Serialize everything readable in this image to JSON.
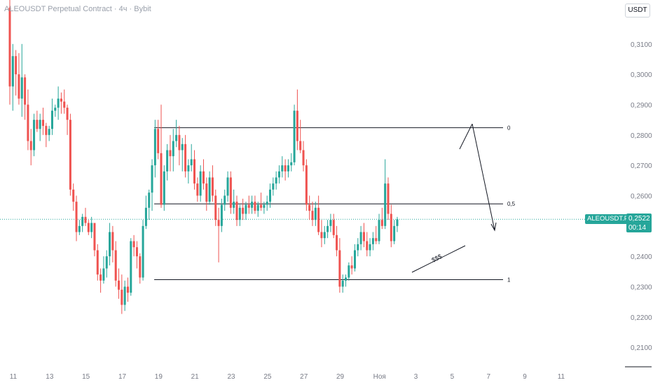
{
  "header": {
    "title": "ALEOUSDT Perpetual Contract · 4ч · Bybit",
    "currency": "USDT"
  },
  "price_tag": {
    "symbol": "ALEOUSDT.P",
    "price": "0,2522",
    "countdown": "00:14"
  },
  "colors": {
    "up": "#26a69a",
    "down": "#ef5350",
    "level_line": "#131722",
    "current_price_line": "#26a69a"
  },
  "chart_data": {
    "type": "candlestick",
    "y_axis": {
      "ticks": [
        "0,3100",
        "0,3000",
        "0,2900",
        "0,2800",
        "0,2700",
        "0,2600",
        "0,2400",
        "0,2300",
        "0,2200",
        "0,2100"
      ],
      "tick_values": [
        0.31,
        0.3,
        0.29,
        0.28,
        0.27,
        0.26,
        0.24,
        0.23,
        0.22,
        0.21
      ],
      "ylim": [
        0.2045,
        0.3245
      ]
    },
    "x_axis": {
      "ticks": [
        "11",
        "13",
        "15",
        "17",
        "19",
        "21",
        "23",
        "25",
        "27",
        "29",
        "Ноя",
        "3",
        "5",
        "7",
        "9",
        "11"
      ],
      "tick_bar_index": [
        0,
        12,
        24,
        36,
        48,
        60,
        72,
        84,
        96,
        108,
        121,
        133,
        145,
        157,
        169,
        181
      ]
    },
    "current_price": 0.2522,
    "levels": [
      {
        "label": "0",
        "value": 0.2824,
        "from_bar": 44,
        "to_bar": 165
      },
      {
        "label": "0,5",
        "value": 0.2573,
        "from_bar": 44,
        "to_bar": 165
      },
      {
        "label": "1",
        "value": 0.2323,
        "from_bar": 44,
        "to_bar": 165
      }
    ],
    "annotations": [
      {
        "text": "$$$",
        "type": "trendline_label"
      }
    ],
    "candles": [
      [
        0.322,
        0.3245,
        0.29,
        0.296
      ],
      [
        0.296,
        0.31,
        0.288,
        0.306
      ],
      [
        0.306,
        0.308,
        0.293,
        0.3
      ],
      [
        0.3,
        0.307,
        0.29,
        0.292
      ],
      [
        0.292,
        0.31,
        0.286,
        0.299
      ],
      [
        0.299,
        0.3,
        0.285,
        0.29
      ],
      [
        0.29,
        0.295,
        0.275,
        0.278
      ],
      [
        0.278,
        0.282,
        0.27,
        0.275
      ],
      [
        0.275,
        0.287,
        0.273,
        0.285
      ],
      [
        0.285,
        0.288,
        0.281,
        0.282
      ],
      [
        0.282,
        0.287,
        0.278,
        0.285
      ],
      [
        0.285,
        0.289,
        0.28,
        0.283
      ],
      [
        0.283,
        0.284,
        0.276,
        0.28
      ],
      [
        0.28,
        0.283,
        0.278,
        0.282
      ],
      [
        0.282,
        0.292,
        0.28,
        0.288
      ],
      [
        0.288,
        0.29,
        0.286,
        0.289
      ],
      [
        0.289,
        0.296,
        0.285,
        0.292
      ],
      [
        0.292,
        0.294,
        0.287,
        0.291
      ],
      [
        0.291,
        0.295,
        0.287,
        0.289
      ],
      [
        0.289,
        0.29,
        0.28,
        0.285
      ],
      [
        0.285,
        0.287,
        0.26,
        0.262
      ],
      [
        0.262,
        0.264,
        0.255,
        0.258
      ],
      [
        0.258,
        0.26,
        0.245,
        0.248
      ],
      [
        0.248,
        0.252,
        0.247,
        0.25
      ],
      [
        0.25,
        0.254,
        0.248,
        0.253
      ],
      [
        0.253,
        0.256,
        0.25,
        0.251
      ],
      [
        0.251,
        0.252,
        0.247,
        0.248
      ],
      [
        0.248,
        0.253,
        0.246,
        0.251
      ],
      [
        0.251,
        0.251,
        0.24,
        0.242
      ],
      [
        0.242,
        0.244,
        0.232,
        0.234
      ],
      [
        0.234,
        0.236,
        0.228,
        0.232
      ],
      [
        0.232,
        0.24,
        0.231,
        0.236
      ],
      [
        0.236,
        0.242,
        0.233,
        0.24
      ],
      [
        0.24,
        0.251,
        0.237,
        0.248
      ],
      [
        0.248,
        0.25,
        0.238,
        0.242
      ],
      [
        0.242,
        0.245,
        0.23,
        0.232
      ],
      [
        0.232,
        0.236,
        0.226,
        0.229
      ],
      [
        0.229,
        0.234,
        0.221,
        0.224
      ],
      [
        0.224,
        0.232,
        0.222,
        0.23
      ],
      [
        0.23,
        0.233,
        0.225,
        0.228
      ],
      [
        0.228,
        0.246,
        0.227,
        0.245
      ],
      [
        0.245,
        0.247,
        0.24,
        0.243
      ],
      [
        0.243,
        0.245,
        0.236,
        0.24
      ],
      [
        0.24,
        0.241,
        0.231,
        0.233
      ],
      [
        0.233,
        0.252,
        0.232,
        0.25
      ],
      [
        0.25,
        0.26,
        0.249,
        0.256
      ],
      [
        0.256,
        0.262,
        0.252,
        0.261
      ],
      [
        0.261,
        0.272,
        0.255,
        0.27
      ],
      [
        0.27,
        0.285,
        0.266,
        0.282
      ],
      [
        0.282,
        0.285,
        0.272,
        0.274
      ],
      [
        0.274,
        0.29,
        0.256,
        0.257
      ],
      [
        0.257,
        0.27,
        0.255,
        0.268
      ],
      [
        0.268,
        0.277,
        0.265,
        0.275
      ],
      [
        0.275,
        0.28,
        0.268,
        0.273
      ],
      [
        0.273,
        0.282,
        0.268,
        0.278
      ],
      [
        0.278,
        0.285,
        0.276,
        0.28
      ],
      [
        0.28,
        0.283,
        0.27,
        0.275
      ],
      [
        0.275,
        0.279,
        0.268,
        0.277
      ],
      [
        0.277,
        0.28,
        0.266,
        0.268
      ],
      [
        0.268,
        0.272,
        0.264,
        0.27
      ],
      [
        0.27,
        0.277,
        0.268,
        0.272
      ],
      [
        0.272,
        0.275,
        0.262,
        0.264
      ],
      [
        0.264,
        0.266,
        0.258,
        0.26
      ],
      [
        0.26,
        0.27,
        0.258,
        0.268
      ],
      [
        0.268,
        0.272,
        0.262,
        0.264
      ],
      [
        0.264,
        0.266,
        0.255,
        0.258
      ],
      [
        0.258,
        0.268,
        0.257,
        0.266
      ],
      [
        0.266,
        0.27,
        0.258,
        0.26
      ],
      [
        0.26,
        0.262,
        0.25,
        0.252
      ],
      [
        0.252,
        0.256,
        0.238,
        0.25
      ],
      [
        0.25,
        0.259,
        0.248,
        0.257
      ],
      [
        0.257,
        0.262,
        0.255,
        0.26
      ],
      [
        0.26,
        0.268,
        0.258,
        0.266
      ],
      [
        0.266,
        0.268,
        0.254,
        0.256
      ],
      [
        0.256,
        0.262,
        0.254,
        0.258
      ],
      [
        0.258,
        0.26,
        0.25,
        0.252
      ],
      [
        0.252,
        0.257,
        0.25,
        0.256
      ],
      [
        0.256,
        0.259,
        0.252,
        0.254
      ],
      [
        0.254,
        0.258,
        0.252,
        0.257
      ],
      [
        0.257,
        0.26,
        0.254,
        0.256
      ],
      [
        0.256,
        0.26,
        0.254,
        0.258
      ],
      [
        0.258,
        0.26,
        0.254,
        0.255
      ],
      [
        0.255,
        0.258,
        0.253,
        0.257
      ],
      [
        0.257,
        0.261,
        0.255,
        0.256
      ],
      [
        0.256,
        0.258,
        0.254,
        0.257
      ],
      [
        0.257,
        0.26,
        0.255,
        0.258
      ],
      [
        0.258,
        0.264,
        0.256,
        0.262
      ],
      [
        0.262,
        0.266,
        0.26,
        0.264
      ],
      [
        0.264,
        0.268,
        0.262,
        0.266
      ],
      [
        0.266,
        0.27,
        0.264,
        0.268
      ],
      [
        0.268,
        0.273,
        0.266,
        0.27
      ],
      [
        0.27,
        0.272,
        0.265,
        0.268
      ],
      [
        0.268,
        0.272,
        0.266,
        0.27
      ],
      [
        0.27,
        0.274,
        0.268,
        0.271
      ],
      [
        0.271,
        0.29,
        0.27,
        0.288
      ],
      [
        0.288,
        0.295,
        0.275,
        0.278
      ],
      [
        0.278,
        0.285,
        0.274,
        0.275
      ],
      [
        0.275,
        0.278,
        0.268,
        0.27
      ],
      [
        0.27,
        0.272,
        0.255,
        0.257
      ],
      [
        0.257,
        0.26,
        0.252,
        0.255
      ],
      [
        0.255,
        0.258,
        0.25,
        0.252
      ],
      [
        0.252,
        0.258,
        0.25,
        0.256
      ],
      [
        0.256,
        0.26,
        0.247,
        0.248
      ],
      [
        0.248,
        0.252,
        0.243,
        0.246
      ],
      [
        0.246,
        0.25,
        0.244,
        0.248
      ],
      [
        0.248,
        0.252,
        0.246,
        0.25
      ],
      [
        0.25,
        0.254,
        0.248,
        0.252
      ],
      [
        0.252,
        0.254,
        0.246,
        0.247
      ],
      [
        0.247,
        0.25,
        0.24,
        0.242
      ],
      [
        0.242,
        0.246,
        0.228,
        0.23
      ],
      [
        0.23,
        0.234,
        0.228,
        0.232
      ],
      [
        0.232,
        0.234,
        0.23,
        0.233
      ],
      [
        0.233,
        0.238,
        0.232,
        0.237
      ],
      [
        0.237,
        0.24,
        0.234,
        0.236
      ],
      [
        0.236,
        0.244,
        0.235,
        0.242
      ],
      [
        0.242,
        0.246,
        0.24,
        0.244
      ],
      [
        0.244,
        0.25,
        0.242,
        0.248
      ],
      [
        0.248,
        0.251,
        0.243,
        0.245
      ],
      [
        0.245,
        0.248,
        0.24,
        0.242
      ],
      [
        0.242,
        0.246,
        0.24,
        0.244
      ],
      [
        0.244,
        0.248,
        0.242,
        0.246
      ],
      [
        0.246,
        0.25,
        0.244,
        0.245
      ],
      [
        0.245,
        0.254,
        0.244,
        0.252
      ],
      [
        0.252,
        0.256,
        0.249,
        0.25
      ],
      [
        0.25,
        0.272,
        0.249,
        0.264
      ],
      [
        0.264,
        0.266,
        0.252,
        0.254
      ],
      [
        0.254,
        0.257,
        0.243,
        0.245
      ],
      [
        0.245,
        0.252,
        0.244,
        0.25
      ],
      [
        0.25,
        0.253,
        0.248,
        0.2522
      ]
    ]
  }
}
